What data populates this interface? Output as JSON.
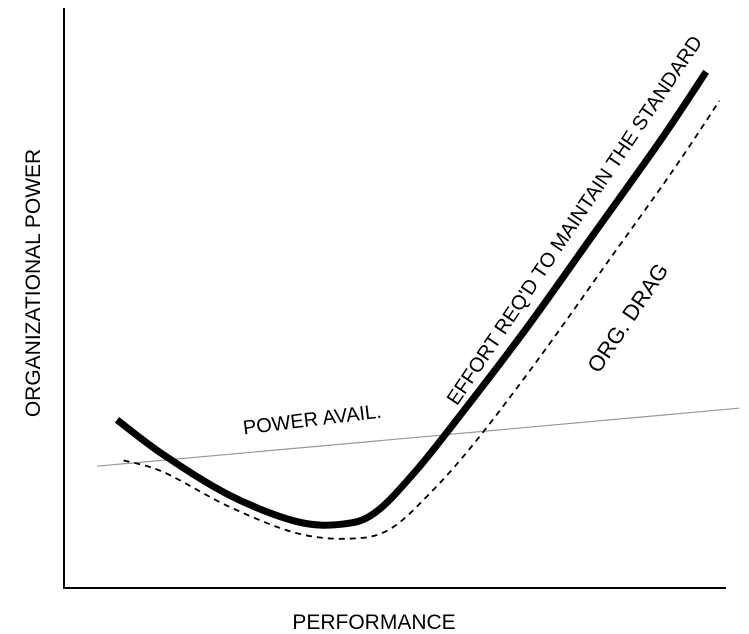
{
  "chart_data": {
    "type": "line",
    "xlabel": "PERFORMANCE",
    "ylabel": "ORGANIZATIONAL POWER",
    "grid": false,
    "legend": "none",
    "annotations": {
      "power_avail": "POWER AVAIL.",
      "effort": "EFFORT REQ'D TO MAINTAIN THE STANDARD",
      "drag": "ORG. DRAG"
    },
    "series": [
      {
        "id": "effort",
        "style": "thick-solid",
        "x": [
          0.08,
          0.15,
          0.25,
          0.35,
          0.42,
          0.47,
          0.53,
          0.6,
          0.7,
          0.8,
          0.9,
          0.97
        ],
        "y": [
          0.29,
          0.23,
          0.16,
          0.115,
          0.11,
          0.13,
          0.2,
          0.3,
          0.45,
          0.61,
          0.77,
          0.89
        ]
      },
      {
        "id": "drag",
        "style": "dashed",
        "x": [
          0.09,
          0.15,
          0.25,
          0.35,
          0.43,
          0.49,
          0.55,
          0.62,
          0.72,
          0.82,
          0.92,
          0.99
        ],
        "y": [
          0.22,
          0.2,
          0.14,
          0.095,
          0.085,
          0.1,
          0.16,
          0.25,
          0.4,
          0.56,
          0.72,
          0.84
        ]
      },
      {
        "id": "power",
        "style": "thin-gray",
        "x": [
          0.05,
          1.02
        ],
        "y": [
          0.21,
          0.31
        ]
      }
    ],
    "colors": {
      "effort": "#000000",
      "drag": "#000000",
      "power": "#999999"
    }
  }
}
